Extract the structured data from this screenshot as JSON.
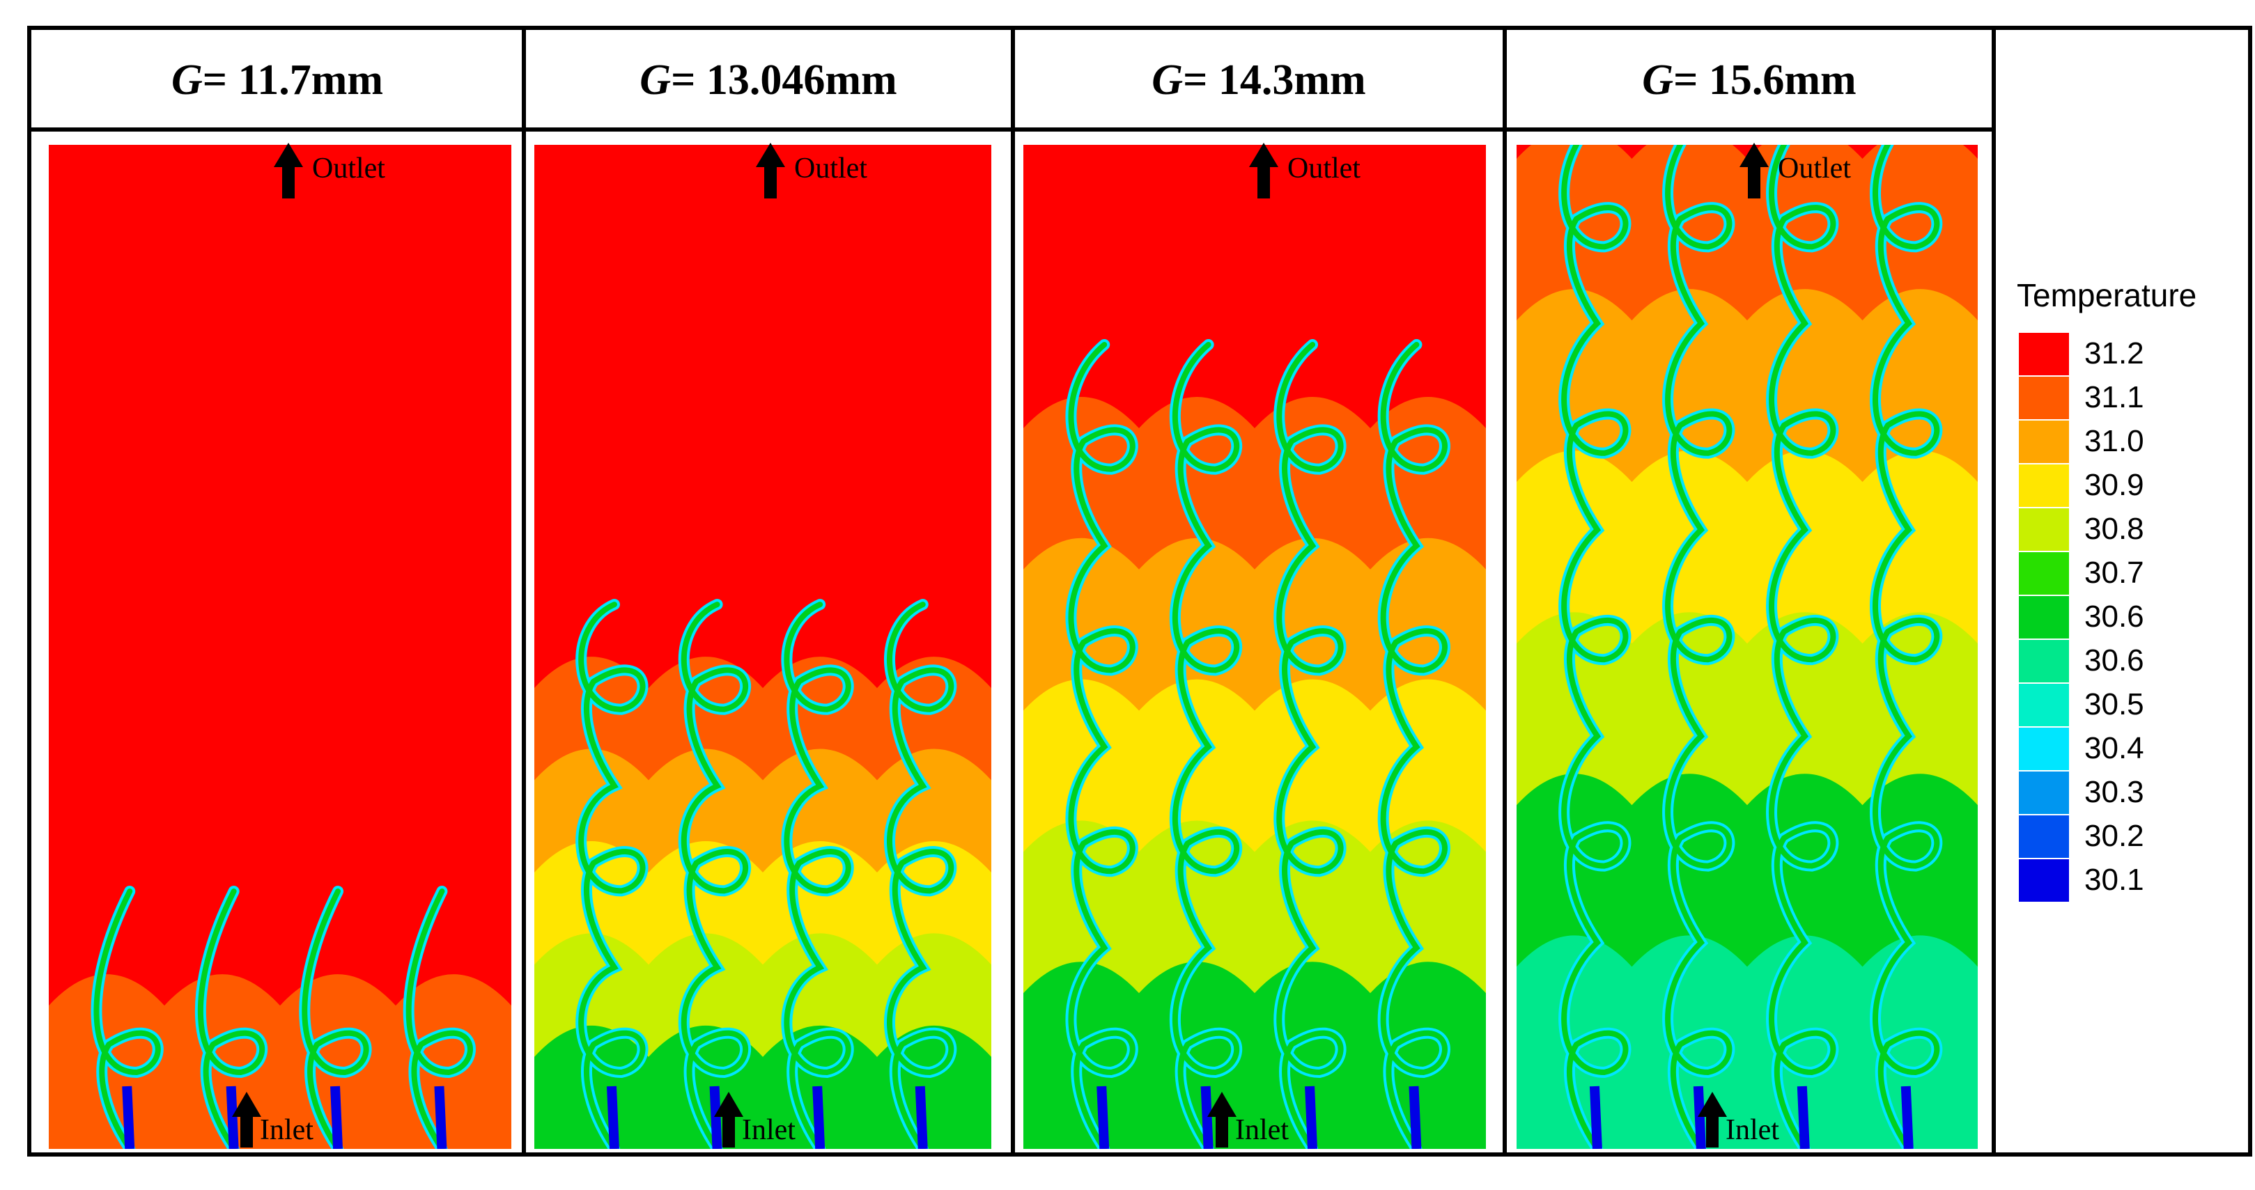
{
  "panels": [
    {
      "g_label": "G",
      "g_value": "= 11.7mm",
      "progress": 0.12
    },
    {
      "g_label": "G",
      "g_value": "= 13.046mm",
      "progress": 0.45
    },
    {
      "g_label": "G",
      "g_value": "= 14.3mm",
      "progress": 0.72
    },
    {
      "g_label": "G",
      "g_value": "= 15.6mm",
      "progress": 1.0
    }
  ],
  "labels": {
    "outlet": "Outlet",
    "inlet": "Inlet"
  },
  "legend": {
    "title": "Temperature",
    "levels": [
      {
        "value": "31.2",
        "color": "#ff0000"
      },
      {
        "value": "31.1",
        "color": "#ff5a00"
      },
      {
        "value": "31.0",
        "color": "#ffa500"
      },
      {
        "value": "30.9",
        "color": "#ffe600"
      },
      {
        "value": "30.8",
        "color": "#c8f000"
      },
      {
        "value": "30.7",
        "color": "#28e000"
      },
      {
        "value": "30.6",
        "color": "#00d01e"
      },
      {
        "value": "30.6",
        "color": "#00e88c"
      },
      {
        "value": "30.5",
        "color": "#00f0c8"
      },
      {
        "value": "30.4",
        "color": "#00e6ff"
      },
      {
        "value": "30.3",
        "color": "#0096f0"
      },
      {
        "value": "30.2",
        "color": "#0050f0"
      },
      {
        "value": "30.1",
        "color": "#0000e6"
      }
    ]
  }
}
